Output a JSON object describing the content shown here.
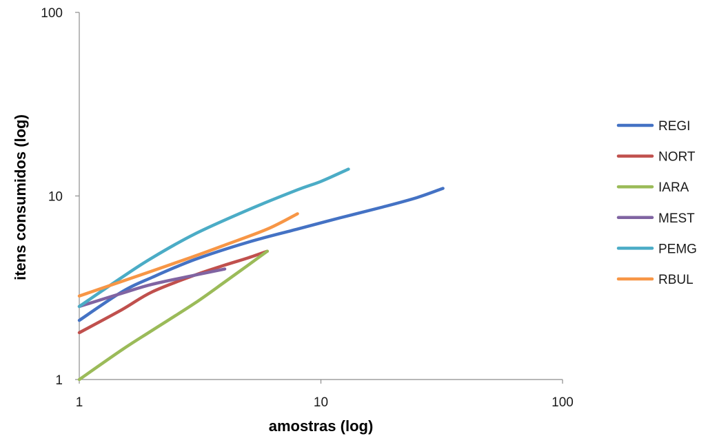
{
  "chart_data": {
    "type": "line",
    "xlabel": "amostras (log)",
    "ylabel": "itens consumidos (log)",
    "xscale": "log",
    "yscale": "log",
    "xlim": [
      1,
      100
    ],
    "ylim": [
      1,
      100
    ],
    "xticks": [
      "1",
      "10",
      "100"
    ],
    "yticks": [
      "1",
      "10",
      "100"
    ],
    "grid": false,
    "legend_position": "right",
    "series": [
      {
        "name": "REGI",
        "color": "#4472C4",
        "points": [
          [
            1,
            2.1
          ],
          [
            1.5,
            3.0
          ],
          [
            2,
            3.6
          ],
          [
            3,
            4.5
          ],
          [
            5,
            5.6
          ],
          [
            8,
            6.6
          ],
          [
            12,
            7.6
          ],
          [
            18,
            8.7
          ],
          [
            25,
            9.8
          ],
          [
            32,
            11
          ]
        ]
      },
      {
        "name": "NORT",
        "color": "#C0504D",
        "points": [
          [
            1,
            1.8
          ],
          [
            1.5,
            2.4
          ],
          [
            2,
            3.0
          ],
          [
            3,
            3.7
          ],
          [
            4,
            4.2
          ],
          [
            5,
            4.6
          ],
          [
            6,
            5.0
          ]
        ]
      },
      {
        "name": "IARA",
        "color": "#9BBB59",
        "points": [
          [
            1,
            1.0
          ],
          [
            1.5,
            1.45
          ],
          [
            2,
            1.85
          ],
          [
            3,
            2.6
          ],
          [
            4,
            3.4
          ],
          [
            5,
            4.2
          ],
          [
            6,
            5.0
          ]
        ]
      },
      {
        "name": "MEST",
        "color": "#8064A2",
        "points": [
          [
            1,
            2.5
          ],
          [
            1.5,
            2.95
          ],
          [
            2,
            3.3
          ],
          [
            3,
            3.7
          ],
          [
            4,
            4.0
          ]
        ]
      },
      {
        "name": "PEMG",
        "color": "#4BACC6",
        "points": [
          [
            1,
            2.5
          ],
          [
            1.5,
            3.6
          ],
          [
            2,
            4.6
          ],
          [
            3,
            6.2
          ],
          [
            5,
            8.4
          ],
          [
            8,
            10.8
          ],
          [
            10,
            12.0
          ],
          [
            13,
            14
          ]
        ]
      },
      {
        "name": "RBUL",
        "color": "#F79646",
        "points": [
          [
            1,
            2.85
          ],
          [
            2,
            3.9
          ],
          [
            3,
            4.7
          ],
          [
            4,
            5.4
          ],
          [
            6,
            6.6
          ],
          [
            8,
            8.0
          ]
        ]
      }
    ]
  }
}
